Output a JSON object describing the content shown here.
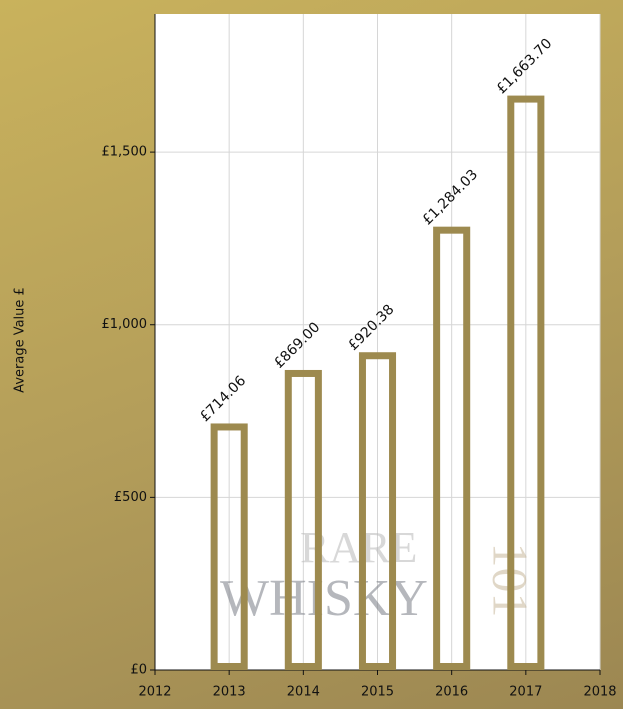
{
  "chart_data": {
    "type": "bar",
    "y_label": "Average Value £",
    "x": [
      2013,
      2014,
      2015,
      2016,
      2017
    ],
    "values": [
      714.06,
      869.0,
      920.38,
      1284.03,
      1663.7
    ],
    "value_labels": [
      "£714.06",
      "£869.00",
      "£920.38",
      "£1,284.03",
      "£1,663.70"
    ],
    "color": "#9d8a4f",
    "xlim": [
      2012,
      2018
    ],
    "xticks": [
      2012,
      2013,
      2014,
      2015,
      2016,
      2017,
      2018
    ],
    "ylim": [
      0,
      1900
    ],
    "yticks": [
      {
        "value": 0,
        "label": "£0"
      },
      {
        "value": 500,
        "label": "£500"
      },
      {
        "value": 1000,
        "label": "£1,000"
      },
      {
        "value": 1500,
        "label": "£1,500"
      }
    ],
    "grid": true,
    "watermark": [
      "RARE",
      "WHISKY",
      "101"
    ]
  }
}
